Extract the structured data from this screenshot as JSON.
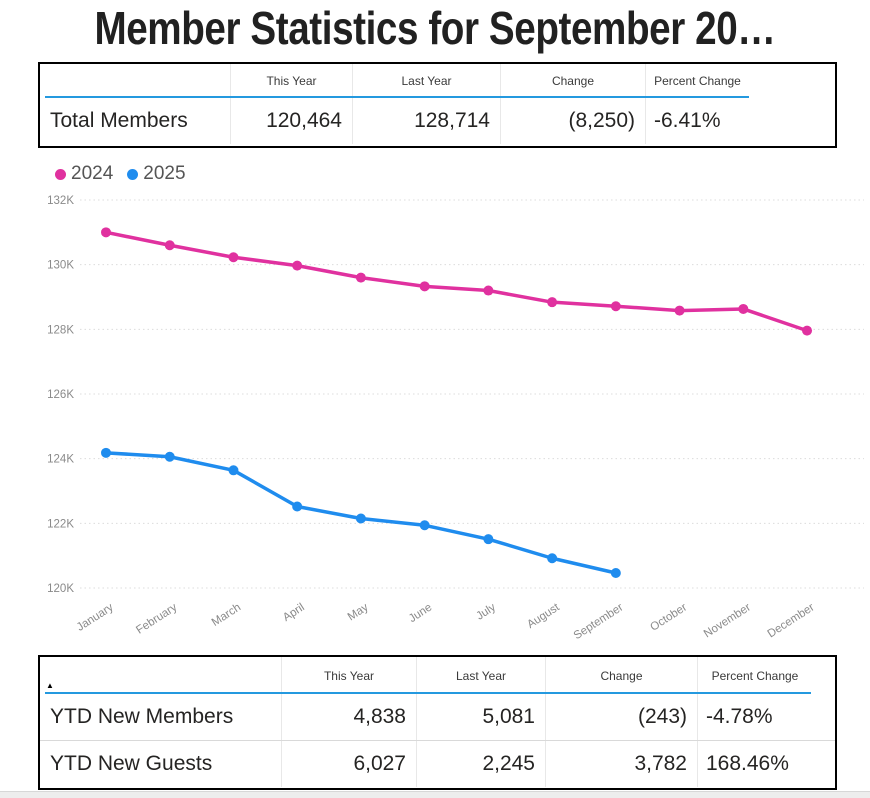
{
  "title": "Member Statistics for September 20…",
  "colors": {
    "series_2024": "#e0319f",
    "series_2025": "#1f8cee",
    "header_underline": "#2499df",
    "gridline": "#dcdcdc",
    "axis_text": "#8a8a8a"
  },
  "summary_table": {
    "columns": [
      "This Year",
      "Last Year",
      "Change",
      "Percent Change"
    ],
    "rows": [
      {
        "label": "Total Members",
        "this_year": "120,464",
        "last_year": "128,714",
        "change": "(8,250)",
        "percent_change": "-6.41%"
      }
    ]
  },
  "chart_data": {
    "type": "line",
    "title": "",
    "xlabel": "",
    "ylabel": "",
    "categories": [
      "January",
      "February",
      "March",
      "April",
      "May",
      "June",
      "July",
      "August",
      "September",
      "October",
      "November",
      "December"
    ],
    "series": [
      {
        "name": "2024",
        "color": "#e0319f",
        "values": [
          131000,
          130600,
          130230,
          129970,
          129600,
          129330,
          129200,
          128840,
          128714,
          128580,
          128630,
          127960
        ]
      },
      {
        "name": "2025",
        "color": "#1f8cee",
        "values": [
          124180,
          124060,
          123640,
          122520,
          122150,
          121940,
          121510,
          120920,
          120464
        ]
      }
    ],
    "ylim": [
      120000,
      132000
    ],
    "ytick_step": 2000,
    "ytick_labels": [
      "132K",
      "130K",
      "128K",
      "126K",
      "124K",
      "122K",
      "120K"
    ],
    "grid": true,
    "legend_position": "top-left"
  },
  "ytd_table": {
    "sort_icon": "▲",
    "columns": [
      "This Year",
      "Last Year",
      "Change",
      "Percent Change"
    ],
    "rows": [
      {
        "label": "YTD New Members",
        "this_year": "4,838",
        "last_year": "5,081",
        "change": "(243)",
        "percent_change": "-4.78%"
      },
      {
        "label": "YTD New Guests",
        "this_year": "6,027",
        "last_year": "2,245",
        "change": "3,782",
        "percent_change": "168.46%"
      }
    ]
  }
}
